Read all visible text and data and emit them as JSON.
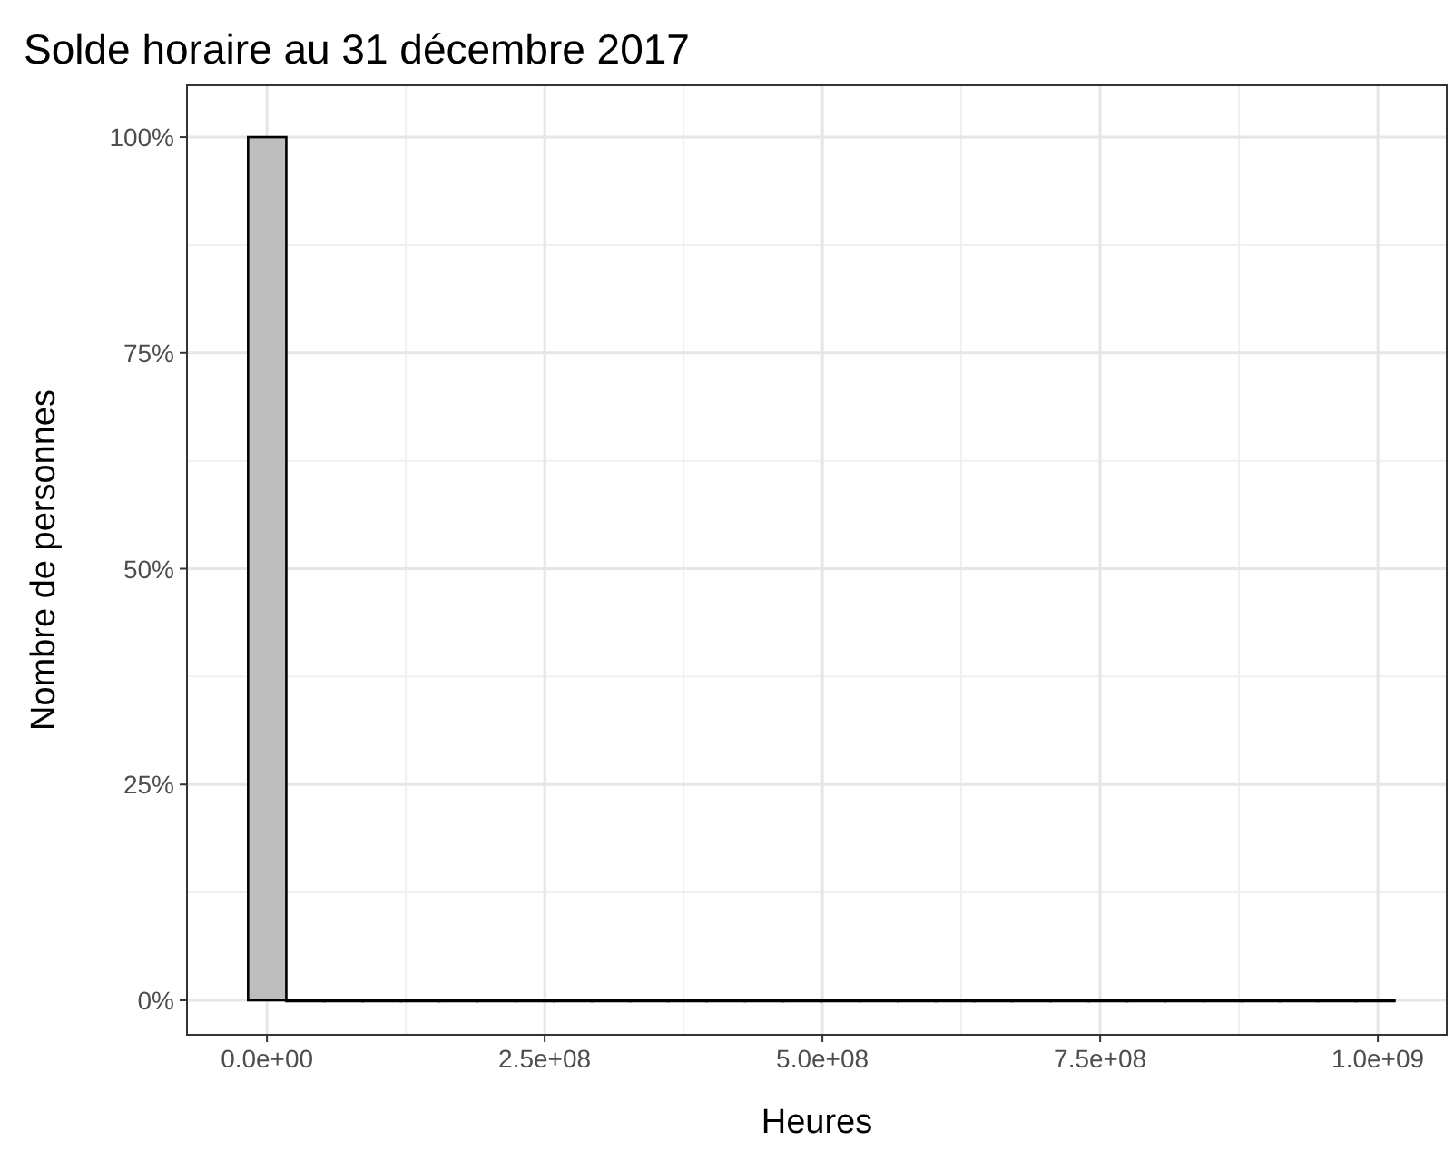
{
  "chart_data": {
    "type": "histogram",
    "title": "Solde horaire au 31 décembre 2017",
    "xlabel": "Heures",
    "ylabel": "Nombre de personnes",
    "bins": [
      -17000000,
      17400000,
      51800000,
      86200000,
      120600000,
      155000000,
      189400000,
      223800000,
      258200000,
      292600000,
      327000000,
      361400000,
      395800000,
      430200000,
      464600000,
      499000000,
      533400000,
      567800000,
      602200000,
      636600000,
      671000000,
      705400000,
      739800000,
      774200000,
      808600000,
      843000000,
      877400000,
      911800000,
      946200000,
      980600000,
      1015000000
    ],
    "values": [
      100,
      0,
      0,
      0,
      0,
      0,
      0,
      0,
      0,
      0,
      0,
      0,
      0,
      0,
      0,
      0,
      0,
      0,
      0,
      0,
      0,
      0,
      0,
      0,
      0,
      0,
      0,
      0,
      0,
      0
    ],
    "color": "#bebebe",
    "xlim": [
      -72000000,
      1062000000
    ],
    "ylim": [
      -4,
      106
    ],
    "xticks": [
      {
        "value": 0,
        "label": "0.0e+00"
      },
      {
        "value": 250000000,
        "label": "2.5e+08"
      },
      {
        "value": 500000000,
        "label": "5.0e+08"
      },
      {
        "value": 750000000,
        "label": "7.5e+08"
      },
      {
        "value": 1000000000,
        "label": "1.0e+09"
      }
    ],
    "yticks": [
      {
        "value": 0,
        "label": "0%"
      },
      {
        "value": 25,
        "label": "25%"
      },
      {
        "value": 50,
        "label": "50%"
      },
      {
        "value": 75,
        "label": "75%"
      },
      {
        "value": 100,
        "label": "100%"
      }
    ],
    "grid": true
  }
}
